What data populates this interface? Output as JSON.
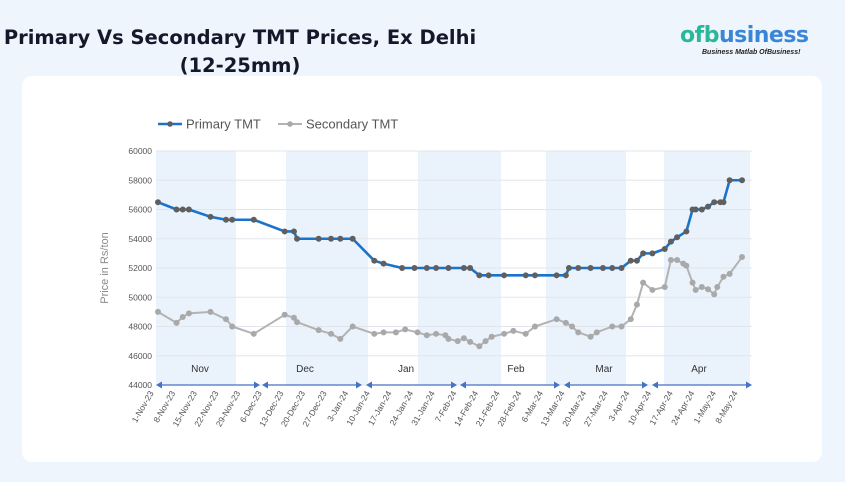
{
  "title_line1": "Primary Vs Secondary TMT Prices, Ex Delhi",
  "title_line2": "(12-25mm)",
  "logo": {
    "text_of": "of",
    "text_b": "b",
    "text_rest": "usiness",
    "tagline": "Business Matlab OfBusiness!"
  },
  "colors": {
    "primary": "#1a73c8",
    "primary_marker": "#5f5f5f",
    "secondary": "#b3b3b3",
    "secondary_marker": "#a9a9a9",
    "band": "#eaf2fc",
    "axis_arrow": "#4472c4"
  },
  "chart_data": {
    "type": "line",
    "title": "",
    "xlabel": "",
    "ylabel": "Price in Rs/ton",
    "ylim": [
      44000,
      60000
    ],
    "yticks": [
      44000,
      46000,
      48000,
      50000,
      52000,
      54000,
      56000,
      58000,
      60000
    ],
    "xlim": [
      "2023-11-01",
      "2024-05-08"
    ],
    "xtick_labels": [
      "1-Nov-23",
      "8-Nov-23",
      "15-Nov-23",
      "22-Nov-23",
      "29-Nov-23",
      "6-Dec-23",
      "13-Dec-23",
      "20-Dec-23",
      "27-Dec-23",
      "3-Jan-24",
      "10-Jan-24",
      "17-Jan-24",
      "24-Jan-24",
      "31-Jan-24",
      "7-Feb-24",
      "14-Feb-24",
      "21-Feb-24",
      "28-Feb-24",
      "6-Mar-24",
      "13-Mar-24",
      "20-Mar-24",
      "27-Mar-24",
      "3-Apr-24",
      "10-Apr-24",
      "17-Apr-24",
      "24-Apr-24",
      "1-May-24",
      "8-May-24"
    ],
    "month_labels": [
      "Nov",
      "Dec",
      "Jan",
      "Feb",
      "Mar",
      "Apr"
    ],
    "legend": "top-left",
    "grid": true,
    "series": [
      {
        "name": "Primary TMT",
        "points": [
          [
            "2023-11-01",
            56500
          ],
          [
            "2023-11-07",
            56000
          ],
          [
            "2023-11-09",
            56000
          ],
          [
            "2023-11-11",
            56000
          ],
          [
            "2023-11-18",
            55500
          ],
          [
            "2023-11-23",
            55300
          ],
          [
            "2023-11-25",
            55300
          ],
          [
            "2023-12-02",
            55300
          ],
          [
            "2023-12-12",
            54500
          ],
          [
            "2023-12-15",
            54500
          ],
          [
            "2023-12-16",
            54000
          ],
          [
            "2023-12-23",
            54000
          ],
          [
            "2023-12-27",
            54000
          ],
          [
            "2023-12-30",
            54000
          ],
          [
            "2024-01-03",
            54000
          ],
          [
            "2024-01-10",
            52500
          ],
          [
            "2024-01-13",
            52300
          ],
          [
            "2024-01-19",
            52000
          ],
          [
            "2024-01-23",
            52000
          ],
          [
            "2024-01-27",
            52000
          ],
          [
            "2024-01-30",
            52000
          ],
          [
            "2024-02-03",
            52000
          ],
          [
            "2024-02-08",
            52000
          ],
          [
            "2024-02-10",
            52000
          ],
          [
            "2024-02-13",
            51500
          ],
          [
            "2024-02-16",
            51500
          ],
          [
            "2024-02-21",
            51500
          ],
          [
            "2024-02-28",
            51500
          ],
          [
            "2024-03-02",
            51500
          ],
          [
            "2024-03-09",
            51500
          ],
          [
            "2024-03-12",
            51500
          ],
          [
            "2024-03-13",
            52000
          ],
          [
            "2024-03-16",
            52000
          ],
          [
            "2024-03-20",
            52000
          ],
          [
            "2024-03-24",
            52000
          ],
          [
            "2024-03-27",
            52000
          ],
          [
            "2024-03-30",
            52000
          ],
          [
            "2024-04-02",
            52500
          ],
          [
            "2024-04-04",
            52500
          ],
          [
            "2024-04-06",
            53000
          ],
          [
            "2024-04-09",
            53000
          ],
          [
            "2024-04-13",
            53300
          ],
          [
            "2024-04-15",
            53800
          ],
          [
            "2024-04-17",
            54100
          ],
          [
            "2024-04-20",
            54500
          ],
          [
            "2024-04-22",
            56000
          ],
          [
            "2024-04-23",
            56000
          ],
          [
            "2024-04-25",
            56000
          ],
          [
            "2024-04-27",
            56200
          ],
          [
            "2024-04-29",
            56500
          ],
          [
            "2024-05-01",
            56500
          ],
          [
            "2024-05-02",
            56500
          ],
          [
            "2024-05-04",
            58000
          ],
          [
            "2024-05-08",
            58000
          ]
        ]
      },
      {
        "name": "Secondary TMT",
        "points": [
          [
            "2023-11-01",
            49000
          ],
          [
            "2023-11-07",
            48250
          ],
          [
            "2023-11-09",
            48650
          ],
          [
            "2023-11-11",
            48900
          ],
          [
            "2023-11-18",
            49000
          ],
          [
            "2023-11-23",
            48500
          ],
          [
            "2023-11-25",
            48000
          ],
          [
            "2023-12-02",
            47500
          ],
          [
            "2023-12-12",
            48800
          ],
          [
            "2023-12-15",
            48600
          ],
          [
            "2023-12-16",
            48300
          ],
          [
            "2023-12-23",
            47750
          ],
          [
            "2023-12-27",
            47500
          ],
          [
            "2023-12-30",
            47150
          ],
          [
            "2024-01-03",
            48000
          ],
          [
            "2024-01-10",
            47500
          ],
          [
            "2024-01-13",
            47600
          ],
          [
            "2024-01-17",
            47600
          ],
          [
            "2024-01-20",
            47800
          ],
          [
            "2024-01-24",
            47600
          ],
          [
            "2024-01-27",
            47400
          ],
          [
            "2024-01-30",
            47500
          ],
          [
            "2024-02-02",
            47400
          ],
          [
            "2024-02-03",
            47150
          ],
          [
            "2024-02-06",
            47000
          ],
          [
            "2024-02-08",
            47200
          ],
          [
            "2024-02-10",
            46950
          ],
          [
            "2024-02-13",
            46650
          ],
          [
            "2024-02-15",
            47000
          ],
          [
            "2024-02-17",
            47300
          ],
          [
            "2024-02-21",
            47500
          ],
          [
            "2024-02-24",
            47700
          ],
          [
            "2024-02-28",
            47500
          ],
          [
            "2024-03-02",
            48000
          ],
          [
            "2024-03-09",
            48500
          ],
          [
            "2024-03-12",
            48250
          ],
          [
            "2024-03-14",
            48000
          ],
          [
            "2024-03-16",
            47600
          ],
          [
            "2024-03-20",
            47300
          ],
          [
            "2024-03-22",
            47600
          ],
          [
            "2024-03-27",
            48000
          ],
          [
            "2024-03-30",
            48000
          ],
          [
            "2024-04-02",
            48500
          ],
          [
            "2024-04-04",
            49500
          ],
          [
            "2024-04-06",
            51000
          ],
          [
            "2024-04-09",
            50500
          ],
          [
            "2024-04-13",
            50700
          ],
          [
            "2024-04-15",
            52550
          ],
          [
            "2024-04-17",
            52550
          ],
          [
            "2024-04-19",
            52300
          ],
          [
            "2024-04-20",
            52150
          ],
          [
            "2024-04-22",
            51000
          ],
          [
            "2024-04-23",
            50500
          ],
          [
            "2024-04-25",
            50700
          ],
          [
            "2024-04-27",
            50550
          ],
          [
            "2024-04-29",
            50200
          ],
          [
            "2024-04-30",
            50700
          ],
          [
            "2024-05-02",
            51400
          ],
          [
            "2024-05-04",
            51600
          ],
          [
            "2024-05-08",
            52750
          ]
        ]
      }
    ]
  }
}
